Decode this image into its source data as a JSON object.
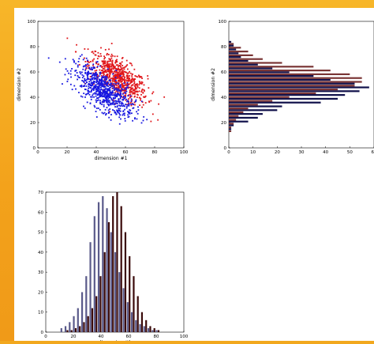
{
  "colors": {
    "red": "#e0161a",
    "blue": "#1616e0",
    "darkred": "#3a0a0a",
    "brown": "#7a3535",
    "navy": "#10104a",
    "slate": "#5a5a8a"
  },
  "chart_data": [
    {
      "type": "scatter",
      "xlabel": "dimension #1",
      "ylabel": "dimension #2",
      "xlim": [
        0,
        100
      ],
      "ylim": [
        0,
        100
      ],
      "xticks": [
        0,
        20,
        40,
        60,
        80,
        100
      ],
      "yticks": [
        0,
        20,
        40,
        60,
        80,
        100
      ],
      "series": [
        {
          "color": "red",
          "mean": [
            55,
            55
          ],
          "cov": [
            [
              100,
              -66
            ],
            [
              -66,
              100
            ]
          ]
        },
        {
          "color": "blue",
          "mean": [
            45,
            45
          ],
          "cov": [
            [
              100,
              -66
            ],
            [
              -66,
              100
            ]
          ]
        }
      ]
    },
    {
      "type": "bar",
      "orientation": "horizontal",
      "ylabel": "dimension #2",
      "xlim": [
        0,
        60
      ],
      "ylim": [
        0,
        100
      ],
      "xticks": [
        0,
        10,
        20,
        30,
        40,
        50,
        60
      ],
      "yticks": [
        0,
        20,
        40,
        60,
        80,
        100
      ],
      "bins": [
        14,
        17,
        20,
        23,
        26,
        29,
        32,
        35,
        38,
        41,
        44,
        47,
        50,
        53,
        56,
        59,
        62,
        65,
        68,
        71,
        74,
        77,
        80,
        83
      ],
      "series": [
        {
          "color": "navy",
          "values": [
            1,
            2,
            8,
            12,
            14,
            20,
            22,
            38,
            45,
            48,
            54,
            58,
            52,
            42,
            35,
            25,
            18,
            12,
            8,
            5,
            4,
            3,
            2,
            1
          ]
        },
        {
          "color": "brown",
          "values": [
            1,
            1,
            2,
            3,
            4,
            6,
            8,
            12,
            18,
            25,
            36,
            45,
            52,
            55,
            55,
            50,
            42,
            35,
            22,
            14,
            10,
            8,
            5,
            2
          ]
        }
      ]
    },
    {
      "type": "bar",
      "xlabel": "dimension #1",
      "xlim": [
        0,
        100
      ],
      "ylim": [
        0,
        70
      ],
      "xticks": [
        0,
        20,
        40,
        60,
        80,
        100
      ],
      "yticks": [
        0,
        10,
        20,
        30,
        40,
        50,
        60,
        70
      ],
      "bins": [
        12,
        15,
        18,
        21,
        24,
        27,
        30,
        33,
        36,
        39,
        42,
        45,
        48,
        51,
        54,
        57,
        60,
        63,
        66,
        69,
        72,
        75,
        78,
        81
      ],
      "series": [
        {
          "color": "slate",
          "values": [
            2,
            3,
            5,
            8,
            12,
            20,
            28,
            45,
            58,
            65,
            68,
            62,
            50,
            40,
            30,
            22,
            15,
            10,
            6,
            4,
            3,
            2,
            1,
            1
          ]
        },
        {
          "color": "darkred",
          "values": [
            0,
            1,
            1,
            2,
            3,
            5,
            8,
            12,
            18,
            28,
            40,
            55,
            68,
            70,
            63,
            50,
            38,
            28,
            18,
            10,
            6,
            3,
            2,
            1
          ]
        }
      ]
    }
  ]
}
